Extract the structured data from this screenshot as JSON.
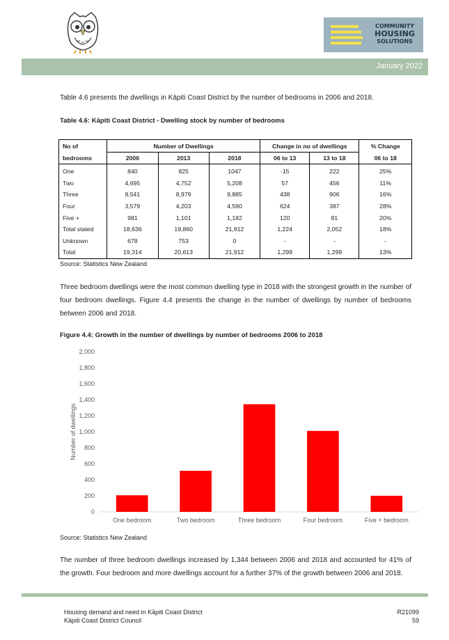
{
  "header": {
    "logo_line1": "COMMUNITY",
    "logo_line2": "HOUSING",
    "logo_line3": "SOLUTIONS",
    "date": "January 2022"
  },
  "intro_text": "Table 4.6 presents the dwellings in Kāpiti Coast District by the number of bedrooms in 2006 and 2018.",
  "table_caption": "Table 4.6:  Kāpiti Coast District - Dwelling stock by number of bedrooms",
  "table": {
    "header_row1": [
      "No of",
      "Number of Dwellings",
      "Change in no of dwellings",
      "% Change"
    ],
    "header_row2": [
      "bedrooms",
      "2006",
      "2013",
      "2018",
      "06 to 13",
      "13 to 18",
      "06 to 18"
    ],
    "rows": [
      [
        "One",
        "840",
        "825",
        "1047",
        "-15",
        "222",
        "25%"
      ],
      [
        "Two",
        "4,695",
        "4,752",
        "5,208",
        "57",
        "456",
        "11%"
      ],
      [
        "Three",
        "8,541",
        "8,979",
        "9,885",
        "438",
        "906",
        "16%"
      ],
      [
        "Four",
        "3,579",
        "4,203",
        "4,590",
        "624",
        "387",
        "28%"
      ],
      [
        "Five +",
        "981",
        "1,101",
        "1,182",
        "120",
        "81",
        "20%"
      ],
      [
        "Total stated",
        "18,636",
        "19,860",
        "21,912",
        "1,224",
        "2,052",
        "18%"
      ],
      [
        "Unknown",
        "678",
        "753",
        "0",
        "-",
        "-",
        "-"
      ],
      [
        "Total",
        "19,314",
        "20,613",
        "21,912",
        "1,299",
        "1,299",
        "13%"
      ]
    ]
  },
  "table_source": "Source:  Statistics New Zealand",
  "body_text": "Three bedroom dwellings were the most common dwelling type in 2018 with the strongest growth in the number of four bedroom dwellings.  Figure 4.4 presents the change in the number of dwellings by number of bedrooms between 2006 and 2018.",
  "figure_caption": "Figure 4.4:  Growth in the number of dwellings by number of bedrooms 2006 to 2018",
  "chart_data": {
    "type": "bar",
    "categories": [
      "One bedroom",
      "Two bedroom",
      "Three bedroom",
      "Four bedroom",
      "Five + bedroom"
    ],
    "values": [
      207,
      513,
      1344,
      1011,
      201
    ],
    "ylabel": "Number of dwellings",
    "ylim": [
      0,
      2000
    ],
    "yticks": [
      "0",
      "200",
      "400",
      "600",
      "800",
      "1,000",
      "1,200",
      "1,400",
      "1,600",
      "1,800",
      "2,000"
    ],
    "bar_color": "#ff0000",
    "grid": false
  },
  "figure_source": "Source:  Statistics New Zealand",
  "closing_text": "The number of three bedroom dwellings increased by 1,344 between 2006 and 2018 and accounted for 41% of the growth.  Four bedroom and more dwellings account for a further 37% of the growth between 2006 and 2018.",
  "footer": {
    "left_line1": "Housing demand and need in Kāpiti Coast District",
    "left_line2": "Kāpiti Coast District Council",
    "right_line1": "R21099",
    "right_line2": "59"
  }
}
